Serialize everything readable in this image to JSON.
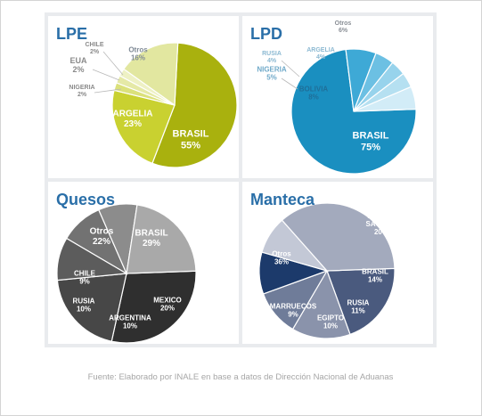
{
  "footnote": "Fuente: Elaborado por INALE en base a datos de Dirección Nacional de Aduanas",
  "title_color": "#2a6fa8",
  "chart_data": [
    {
      "type": "pie",
      "title": "LPE",
      "slices": [
        {
          "label": "BRASIL",
          "value": 55,
          "value_label": "55%",
          "color": "#a9b10e",
          "text_color": "#ffffff"
        },
        {
          "label": "ARGELIA",
          "value": 23,
          "value_label": "23%",
          "color": "#c9d130",
          "text_color": "#ffffff"
        },
        {
          "label": "NIGERIA",
          "value": 2,
          "value_label": "2%",
          "color": "#dbe17a",
          "text_color": "#8a8a8a"
        },
        {
          "label": "EUA",
          "value": 2,
          "value_label": "2%",
          "color": "#e5e9a6",
          "text_color": "#8a8a8a"
        },
        {
          "label": "CHILE",
          "value": 2,
          "value_label": "2%",
          "color": "#eef1c4",
          "text_color": "#8a8a8a"
        },
        {
          "label": "Otros",
          "value": 16,
          "value_label": "16%",
          "color": "#e2e7a0",
          "text_color": "#7f8a96"
        }
      ]
    },
    {
      "type": "pie",
      "title": "LPD",
      "slices": [
        {
          "label": "BRASIL",
          "value": 75,
          "value_label": "75%",
          "color": "#1a8fc0",
          "text_color": "#ffffff"
        },
        {
          "label": "BOLIVIA",
          "value": 8,
          "value_label": "8%",
          "color": "#3ea9d6",
          "text_color": "#1f6f99"
        },
        {
          "label": "NIGERIA",
          "value": 5,
          "value_label": "5%",
          "color": "#6cc0e3",
          "text_color": "#6fa9c9"
        },
        {
          "label": "RUSIA",
          "value": 4,
          "value_label": "4%",
          "color": "#97d3ec",
          "text_color": "#8cb9d2"
        },
        {
          "label": "ARGELIA",
          "value": 4,
          "value_label": "4%",
          "color": "#b5e0f1",
          "text_color": "#8cb9d2"
        },
        {
          "label": "Otros",
          "value": 6,
          "value_label": "6%",
          "color": "#d2ecf7",
          "text_color": "#8a8f96"
        }
      ]
    },
    {
      "type": "pie",
      "title": "Quesos",
      "slices": [
        {
          "label": "BRASIL",
          "value": 29,
          "value_label": "29%",
          "color": "#2f2f2f",
          "text_color": "#ffffff"
        },
        {
          "label": "MEXICO",
          "value": 20,
          "value_label": "20%",
          "color": "#474747",
          "text_color": "#ffffff"
        },
        {
          "label": "ARGENTINA",
          "value": 10,
          "value_label": "10%",
          "color": "#5c5c5c",
          "text_color": "#ffffff"
        },
        {
          "label": "RUSIA",
          "value": 10,
          "value_label": "10%",
          "color": "#727272",
          "text_color": "#ffffff"
        },
        {
          "label": "CHILE",
          "value": 9,
          "value_label": "9%",
          "color": "#8c8c8c",
          "text_color": "#ffffff"
        },
        {
          "label": "Otros",
          "value": 22,
          "value_label": "22%",
          "color": "#a9a9a9",
          "text_color": "#ffffff"
        }
      ]
    },
    {
      "type": "pie",
      "title": "Manteca",
      "slices": [
        {
          "label": "ARABIA SAUDITA",
          "value": 20,
          "value_label": "20%",
          "color": "#4a5a7e",
          "text_color": "#ffffff"
        },
        {
          "label": "BRASIL",
          "value": 14,
          "value_label": "14%",
          "color": "#8a93ab",
          "text_color": "#ffffff"
        },
        {
          "label": "RUSIA",
          "value": 11,
          "value_label": "11%",
          "color": "#6f7c99",
          "text_color": "#ffffff"
        },
        {
          "label": "EGIPTO",
          "value": 10,
          "value_label": "10%",
          "color": "#1c3a6b",
          "text_color": "#ffffff"
        },
        {
          "label": "MARRUECOS",
          "value": 9,
          "value_label": "9%",
          "color": "#c3c8d6",
          "text_color": "#ffffff"
        },
        {
          "label": "Otros",
          "value": 36,
          "value_label": "36%",
          "color": "#a3aabd",
          "text_color": "#ffffff"
        }
      ]
    }
  ]
}
